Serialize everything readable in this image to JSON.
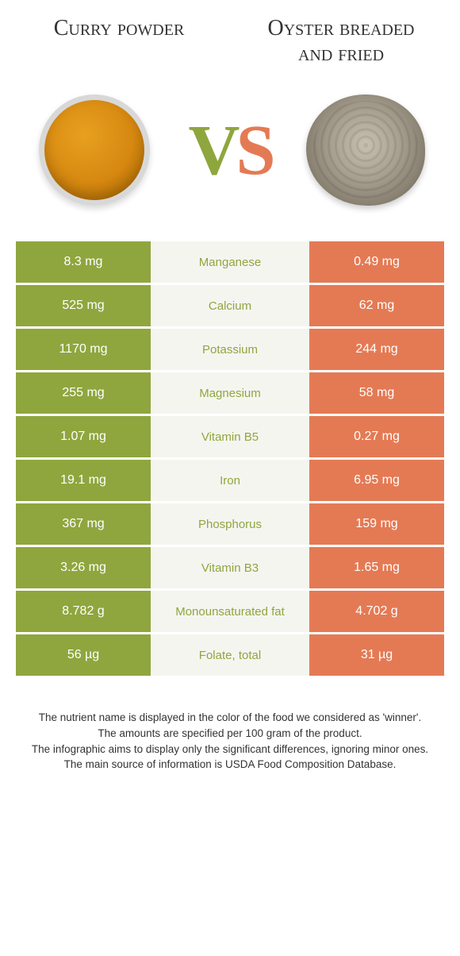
{
  "titles": {
    "left": "Curry powder",
    "right": "Oyster breaded and fried"
  },
  "vs": {
    "v": "V",
    "s": "S"
  },
  "colors": {
    "green": "#8fa63e",
    "orange": "#e47a54",
    "mid_bg": "#f5f5f0",
    "text": "#333333"
  },
  "rows": [
    {
      "left": "8.3 mg",
      "label": "Manganese",
      "right": "0.49 mg",
      "winner": "green"
    },
    {
      "left": "525 mg",
      "label": "Calcium",
      "right": "62 mg",
      "winner": "green"
    },
    {
      "left": "1170 mg",
      "label": "Potassium",
      "right": "244 mg",
      "winner": "green"
    },
    {
      "left": "255 mg",
      "label": "Magnesium",
      "right": "58 mg",
      "winner": "green"
    },
    {
      "left": "1.07 mg",
      "label": "Vitamin B5",
      "right": "0.27 mg",
      "winner": "green"
    },
    {
      "left": "19.1 mg",
      "label": "Iron",
      "right": "6.95 mg",
      "winner": "green"
    },
    {
      "left": "367 mg",
      "label": "Phosphorus",
      "right": "159 mg",
      "winner": "green"
    },
    {
      "left": "3.26 mg",
      "label": "Vitamin B3",
      "right": "1.65 mg",
      "winner": "green"
    },
    {
      "left": "8.782 g",
      "label": "Monounsaturated fat",
      "right": "4.702 g",
      "winner": "green"
    },
    {
      "left": "56 µg",
      "label": "Folate, total",
      "right": "31 µg",
      "winner": "green"
    }
  ],
  "footer": {
    "l1": "The nutrient name is displayed in the color of the food we considered as 'winner'.",
    "l2": "The amounts are specified per 100 gram of the product.",
    "l3": "The infographic aims to display only the significant differences, ignoring minor ones.",
    "l4": "The main source of information is USDA Food Composition Database."
  }
}
